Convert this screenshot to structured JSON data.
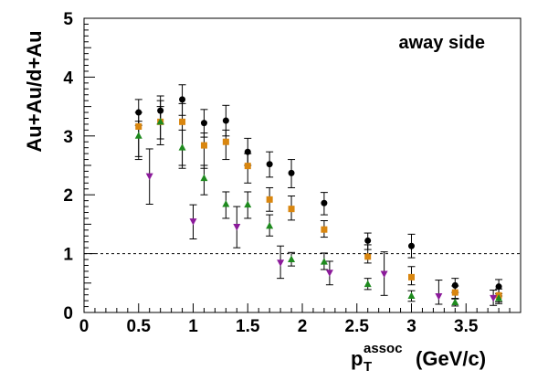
{
  "chart_data": {
    "type": "scatter",
    "title": "",
    "annotation": "away side",
    "xlabel": {
      "main": "p",
      "sub": "T",
      "sup": "assoc",
      "unit": "(GeV/c)"
    },
    "ylabel": "Au+Au/d+Au",
    "xlim": [
      0,
      4
    ],
    "ylim": [
      0,
      5
    ],
    "x_ticks": [
      "0",
      "0.5",
      "1",
      "1.5",
      "2",
      "2.5",
      "3",
      "3.5"
    ],
    "y_ticks": [
      "0",
      "1",
      "2",
      "3",
      "4",
      "5"
    ],
    "reference_line": {
      "y": 1,
      "style": "dashed"
    },
    "grid": false,
    "legend": "none",
    "series": [
      {
        "marker": "circle",
        "color": "#000000",
        "points": [
          {
            "x": 0.5,
            "y": 3.4,
            "lo": 3.18,
            "hi": 3.62
          },
          {
            "x": 0.7,
            "y": 3.43,
            "lo": 3.2,
            "hi": 3.68
          },
          {
            "x": 0.9,
            "y": 3.62,
            "lo": 3.35,
            "hi": 3.87
          },
          {
            "x": 1.1,
            "y": 3.22,
            "lo": 2.98,
            "hi": 3.45
          },
          {
            "x": 1.3,
            "y": 3.26,
            "lo": 3.0,
            "hi": 3.52
          },
          {
            "x": 1.5,
            "y": 2.73,
            "lo": 2.5,
            "hi": 2.96
          },
          {
            "x": 1.7,
            "y": 2.52,
            "lo": 2.3,
            "hi": 2.73
          },
          {
            "x": 1.9,
            "y": 2.37,
            "lo": 2.12,
            "hi": 2.6
          },
          {
            "x": 2.2,
            "y": 1.86,
            "lo": 1.66,
            "hi": 2.04
          },
          {
            "x": 2.6,
            "y": 1.22,
            "lo": 1.07,
            "hi": 1.35
          },
          {
            "x": 3.0,
            "y": 1.13,
            "lo": 0.93,
            "hi": 1.33
          },
          {
            "x": 3.4,
            "y": 0.46,
            "lo": 0.34,
            "hi": 0.58
          },
          {
            "x": 3.8,
            "y": 0.44,
            "lo": 0.28,
            "hi": 0.56
          }
        ]
      },
      {
        "marker": "square",
        "color": "#d9860f",
        "points": [
          {
            "x": 0.5,
            "y": 3.16,
            "lo": 2.6,
            "hi": 3.4
          },
          {
            "x": 0.7,
            "y": 3.24,
            "lo": 2.85,
            "hi": 3.6
          },
          {
            "x": 0.9,
            "y": 3.24,
            "lo": 2.5,
            "hi": 3.55
          },
          {
            "x": 1.1,
            "y": 2.84,
            "lo": 2.45,
            "hi": 3.05
          },
          {
            "x": 1.3,
            "y": 2.9,
            "lo": 2.6,
            "hi": 3.1
          },
          {
            "x": 1.5,
            "y": 2.49,
            "lo": 2.2,
            "hi": 2.7
          },
          {
            "x": 1.7,
            "y": 1.92,
            "lo": 1.72,
            "hi": 2.12
          },
          {
            "x": 1.9,
            "y": 1.76,
            "lo": 1.57,
            "hi": 1.98
          },
          {
            "x": 2.2,
            "y": 1.41,
            "lo": 1.28,
            "hi": 1.56
          },
          {
            "x": 2.6,
            "y": 0.95,
            "lo": 0.84,
            "hi": 1.15
          },
          {
            "x": 3.0,
            "y": 0.6,
            "lo": 0.47,
            "hi": 0.78
          },
          {
            "x": 3.4,
            "y": 0.34,
            "lo": 0.23,
            "hi": 0.45
          },
          {
            "x": 3.8,
            "y": 0.29,
            "lo": 0.18,
            "hi": 0.4
          }
        ]
      },
      {
        "marker": "triangle-up",
        "color": "#1e8a1e",
        "points": [
          {
            "x": 0.5,
            "y": 3.0,
            "lo": 2.65,
            "hi": 3.25
          },
          {
            "x": 0.7,
            "y": 3.24,
            "lo": 2.95,
            "hi": 3.5
          },
          {
            "x": 0.9,
            "y": 2.8,
            "lo": 2.45,
            "hi": 3.1
          },
          {
            "x": 1.1,
            "y": 2.28,
            "lo": 2.0,
            "hi": 2.5
          },
          {
            "x": 1.3,
            "y": 1.84,
            "lo": 1.6,
            "hi": 2.05
          },
          {
            "x": 1.5,
            "y": 1.83,
            "lo": 1.6,
            "hi": 2.05
          },
          {
            "x": 1.7,
            "y": 1.47,
            "lo": 1.3,
            "hi": 1.66
          },
          {
            "x": 1.9,
            "y": 0.9,
            "lo": 0.79,
            "hi": 1.02
          },
          {
            "x": 2.2,
            "y": 0.86,
            "lo": 0.73,
            "hi": 1.01
          },
          {
            "x": 2.6,
            "y": 0.48,
            "lo": 0.39,
            "hi": 0.58
          },
          {
            "x": 3.0,
            "y": 0.28,
            "lo": 0.19,
            "hi": 0.37
          },
          {
            "x": 3.4,
            "y": 0.17,
            "lo": 0.11,
            "hi": 0.24
          },
          {
            "x": 3.8,
            "y": 0.24,
            "lo": 0.15,
            "hi": 0.32
          }
        ]
      },
      {
        "marker": "triangle-down",
        "color": "#8b1a9a",
        "points": [
          {
            "x": 0.6,
            "y": 2.32,
            "lo": 1.84,
            "hi": 2.78
          },
          {
            "x": 1.0,
            "y": 1.55,
            "lo": 1.25,
            "hi": 1.83
          },
          {
            "x": 1.4,
            "y": 1.46,
            "lo": 1.1,
            "hi": 1.8
          },
          {
            "x": 1.8,
            "y": 0.85,
            "lo": 0.58,
            "hi": 1.13
          },
          {
            "x": 2.25,
            "y": 0.68,
            "lo": 0.47,
            "hi": 0.87
          },
          {
            "x": 2.75,
            "y": 0.66,
            "lo": 0.29,
            "hi": 1.03
          },
          {
            "x": 3.25,
            "y": 0.28,
            "lo": 0.14,
            "hi": 0.55
          },
          {
            "x": 3.75,
            "y": 0.25,
            "lo": 0.12,
            "hi": 0.38
          }
        ]
      }
    ]
  }
}
